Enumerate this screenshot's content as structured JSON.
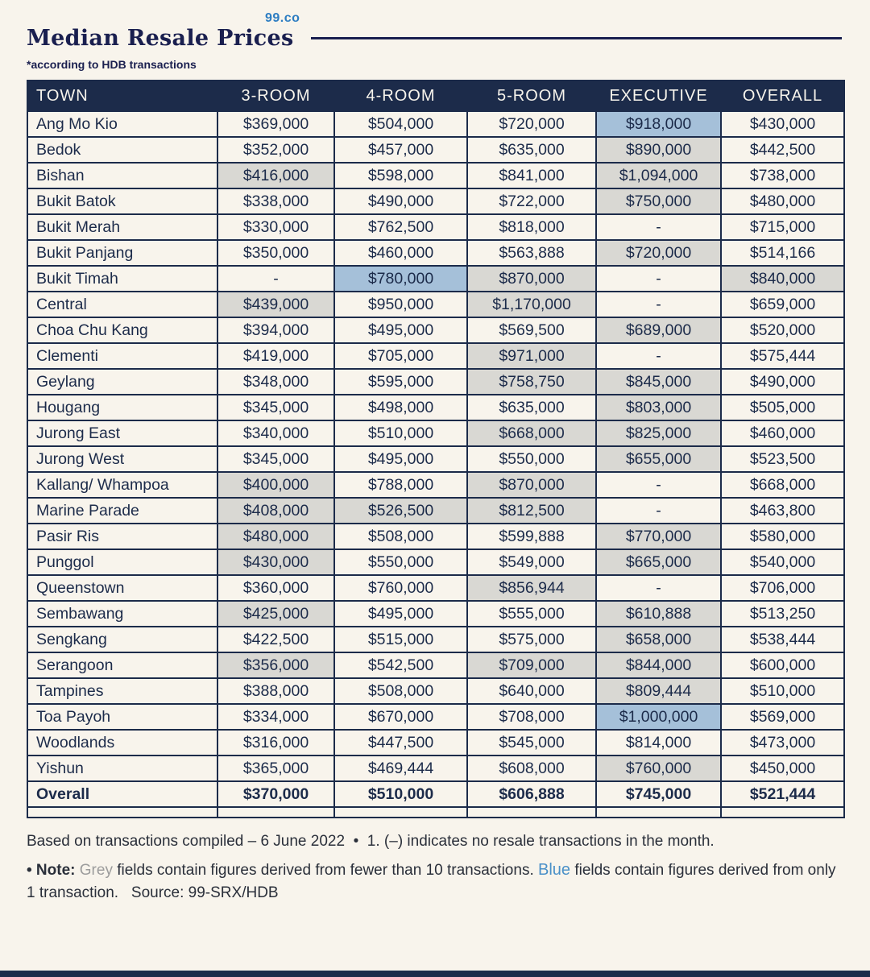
{
  "header": {
    "logo": "99.co",
    "title": "Median Resale Prices",
    "subtitle": "*according to HDB transactions"
  },
  "chart_data": {
    "type": "table",
    "title": "Median Resale Prices",
    "columns": [
      "TOWN",
      "3-ROOM",
      "4-ROOM",
      "5-ROOM",
      "EXECUTIVE",
      "OVERALL"
    ],
    "rows": [
      {
        "town": "Ang Mo Kio",
        "values": [
          "$369,000",
          "$504,000",
          "$720,000",
          "$918,000",
          "$430,000"
        ],
        "marks": [
          "none",
          "none",
          "none",
          "blue",
          "none"
        ],
        "bold": false
      },
      {
        "town": "Bedok",
        "values": [
          "$352,000",
          "$457,000",
          "$635,000",
          "$890,000",
          "$442,500"
        ],
        "marks": [
          "none",
          "none",
          "none",
          "grey",
          "none"
        ],
        "bold": false
      },
      {
        "town": "Bishan",
        "values": [
          "$416,000",
          "$598,000",
          "$841,000",
          "$1,094,000",
          "$738,000"
        ],
        "marks": [
          "grey",
          "none",
          "none",
          "grey",
          "none"
        ],
        "bold": false
      },
      {
        "town": "Bukit Batok",
        "values": [
          "$338,000",
          "$490,000",
          "$722,000",
          "$750,000",
          "$480,000"
        ],
        "marks": [
          "none",
          "none",
          "none",
          "grey",
          "none"
        ],
        "bold": false
      },
      {
        "town": "Bukit Merah",
        "values": [
          "$330,000",
          "$762,500",
          "$818,000",
          "-",
          "$715,000"
        ],
        "marks": [
          "none",
          "none",
          "none",
          "none",
          "none"
        ],
        "bold": false
      },
      {
        "town": "Bukit Panjang",
        "values": [
          "$350,000",
          "$460,000",
          "$563,888",
          "$720,000",
          "$514,166"
        ],
        "marks": [
          "none",
          "none",
          "none",
          "grey",
          "none"
        ],
        "bold": false
      },
      {
        "town": "Bukit Timah",
        "values": [
          "-",
          "$780,000",
          "$870,000",
          "-",
          "$840,000"
        ],
        "marks": [
          "none",
          "blue",
          "grey",
          "none",
          "grey"
        ],
        "bold": false
      },
      {
        "town": "Central",
        "values": [
          "$439,000",
          "$950,000",
          "$1,170,000",
          "-",
          "$659,000"
        ],
        "marks": [
          "grey",
          "none",
          "grey",
          "none",
          "none"
        ],
        "bold": false
      },
      {
        "town": "Choa Chu Kang",
        "values": [
          "$394,000",
          "$495,000",
          "$569,500",
          "$689,000",
          "$520,000"
        ],
        "marks": [
          "none",
          "none",
          "none",
          "grey",
          "none"
        ],
        "bold": false
      },
      {
        "town": "Clementi",
        "values": [
          "$419,000",
          "$705,000",
          "$971,000",
          "-",
          "$575,444"
        ],
        "marks": [
          "none",
          "none",
          "grey",
          "none",
          "none"
        ],
        "bold": false
      },
      {
        "town": "Geylang",
        "values": [
          "$348,000",
          "$595,000",
          "$758,750",
          "$845,000",
          "$490,000"
        ],
        "marks": [
          "none",
          "none",
          "grey",
          "grey",
          "none"
        ],
        "bold": false
      },
      {
        "town": "Hougang",
        "values": [
          "$345,000",
          "$498,000",
          "$635,000",
          "$803,000",
          "$505,000"
        ],
        "marks": [
          "none",
          "none",
          "none",
          "grey",
          "none"
        ],
        "bold": false
      },
      {
        "town": "Jurong East",
        "values": [
          "$340,000",
          "$510,000",
          "$668,000",
          "$825,000",
          "$460,000"
        ],
        "marks": [
          "none",
          "none",
          "grey",
          "grey",
          "none"
        ],
        "bold": false
      },
      {
        "town": "Jurong West",
        "values": [
          "$345,000",
          "$495,000",
          "$550,000",
          "$655,000",
          "$523,500"
        ],
        "marks": [
          "none",
          "none",
          "none",
          "grey",
          "none"
        ],
        "bold": false
      },
      {
        "town": "Kallang/ Whampoa",
        "values": [
          "$400,000",
          "$788,000",
          "$870,000",
          "-",
          "$668,000"
        ],
        "marks": [
          "grey",
          "none",
          "grey",
          "none",
          "none"
        ],
        "bold": false
      },
      {
        "town": "Marine Parade",
        "values": [
          "$408,000",
          "$526,500",
          "$812,500",
          "-",
          "$463,800"
        ],
        "marks": [
          "grey",
          "grey",
          "grey",
          "none",
          "none"
        ],
        "bold": false
      },
      {
        "town": "Pasir Ris",
        "values": [
          "$480,000",
          "$508,000",
          "$599,888",
          "$770,000",
          "$580,000"
        ],
        "marks": [
          "grey",
          "none",
          "none",
          "grey",
          "none"
        ],
        "bold": false
      },
      {
        "town": "Punggol",
        "values": [
          "$430,000",
          "$550,000",
          "$549,000",
          "$665,000",
          "$540,000"
        ],
        "marks": [
          "grey",
          "none",
          "none",
          "grey",
          "none"
        ],
        "bold": false
      },
      {
        "town": "Queenstown",
        "values": [
          "$360,000",
          "$760,000",
          "$856,944",
          "-",
          "$706,000"
        ],
        "marks": [
          "none",
          "none",
          "grey",
          "none",
          "none"
        ],
        "bold": false
      },
      {
        "town": "Sembawang",
        "values": [
          "$425,000",
          "$495,000",
          "$555,000",
          "$610,888",
          "$513,250"
        ],
        "marks": [
          "grey",
          "none",
          "none",
          "grey",
          "none"
        ],
        "bold": false
      },
      {
        "town": "Sengkang",
        "values": [
          "$422,500",
          "$515,000",
          "$575,000",
          "$658,000",
          "$538,444"
        ],
        "marks": [
          "none",
          "none",
          "none",
          "grey",
          "none"
        ],
        "bold": false
      },
      {
        "town": "Serangoon",
        "values": [
          "$356,000",
          "$542,500",
          "$709,000",
          "$844,000",
          "$600,000"
        ],
        "marks": [
          "grey",
          "none",
          "grey",
          "grey",
          "none"
        ],
        "bold": false
      },
      {
        "town": "Tampines",
        "values": [
          "$388,000",
          "$508,000",
          "$640,000",
          "$809,444",
          "$510,000"
        ],
        "marks": [
          "none",
          "none",
          "none",
          "grey",
          "none"
        ],
        "bold": false
      },
      {
        "town": "Toa Payoh",
        "values": [
          "$334,000",
          "$670,000",
          "$708,000",
          "$1,000,000",
          "$569,000"
        ],
        "marks": [
          "none",
          "none",
          "none",
          "blue",
          "none"
        ],
        "bold": false
      },
      {
        "town": "Woodlands",
        "values": [
          "$316,000",
          "$447,500",
          "$545,000",
          "$814,000",
          "$473,000"
        ],
        "marks": [
          "none",
          "none",
          "none",
          "none",
          "none"
        ],
        "bold": false
      },
      {
        "town": "Yishun",
        "values": [
          "$365,000",
          "$469,444",
          "$608,000",
          "$760,000",
          "$450,000"
        ],
        "marks": [
          "none",
          "none",
          "none",
          "grey",
          "none"
        ],
        "bold": false
      },
      {
        "town": "Overall",
        "values": [
          "$370,000",
          "$510,000",
          "$606,888",
          "$745,000",
          "$521,444"
        ],
        "marks": [
          "none",
          "none",
          "none",
          "none",
          "none"
        ],
        "bold": true
      }
    ],
    "legend": {
      "grey": "fields contain figures derived from fewer than 10 transactions",
      "blue": "fields contain figures derived from only 1 transaction",
      "dash": "indicates no resale transactions in the month"
    }
  },
  "footnotes": {
    "line1": "Based on transactions compiled – 6 June 2022  •  1. (–) indicates no resale transactions in the month.",
    "note_label": "• Note:",
    "grey_word": "Grey",
    "note_mid": " fields contain figures derived from fewer than 10 transactions. ",
    "blue_word": "Blue",
    "note_suffix": " fields contain figures derived from only 1 transaction.   Source: 99-SRX/HDB"
  },
  "colors": {
    "navy": "#1c2b4a",
    "grey_cell": "#d9d8d3",
    "blue_cell": "#a5c0d9",
    "background": "#f8f4ec",
    "logo_blue": "#2d7dc2",
    "grey_word": "#9c9c9c",
    "blue_word": "#4a90c8"
  }
}
